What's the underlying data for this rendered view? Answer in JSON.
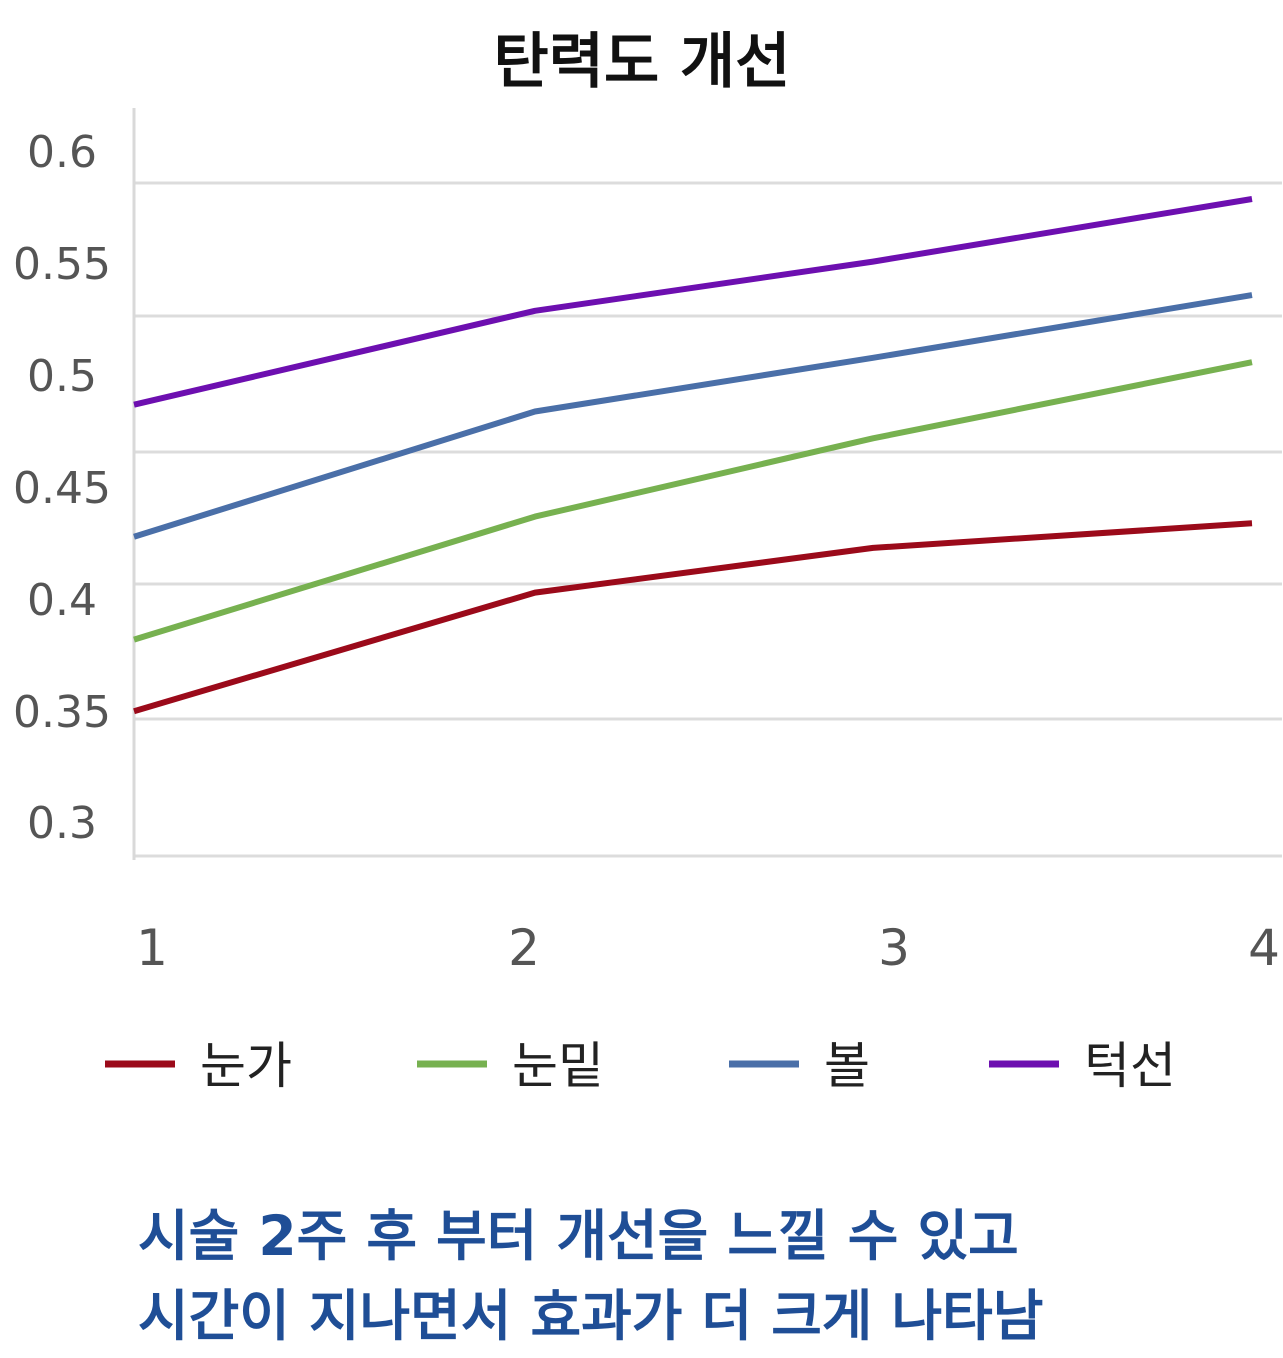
{
  "chart_data": {
    "type": "line",
    "title": "탄력도 개선",
    "x": [
      1,
      2,
      3,
      4
    ],
    "x_tick_labels": [
      "1",
      "2",
      "3",
      "4"
    ],
    "ylim": [
      0.3,
      0.6
    ],
    "y_tick_labels": [
      "0.6",
      "0.55",
      "0.5",
      "0.45",
      "0.4",
      "0.35",
      "0.3"
    ],
    "grid": true,
    "legend_position": "bottom",
    "series": [
      {
        "name": "눈가",
        "color": "#9b0a1a",
        "values": [
          0.35,
          0.403,
          0.423,
          0.434
        ]
      },
      {
        "name": "눈밑",
        "color": "#77b150",
        "values": [
          0.382,
          0.437,
          0.472,
          0.506
        ]
      },
      {
        "name": "볼",
        "color": "#4a6fa8",
        "values": [
          0.428,
          0.484,
          0.508,
          0.536
        ]
      },
      {
        "name": "턱선",
        "color": "#6d0fb0",
        "values": [
          0.487,
          0.529,
          0.551,
          0.579
        ]
      }
    ]
  },
  "caption": {
    "line1": "시술 2주 후 부터 개선을 느낄 수 있고",
    "line2": "시간이 지나면서 효과가 더 크게 나타남"
  }
}
